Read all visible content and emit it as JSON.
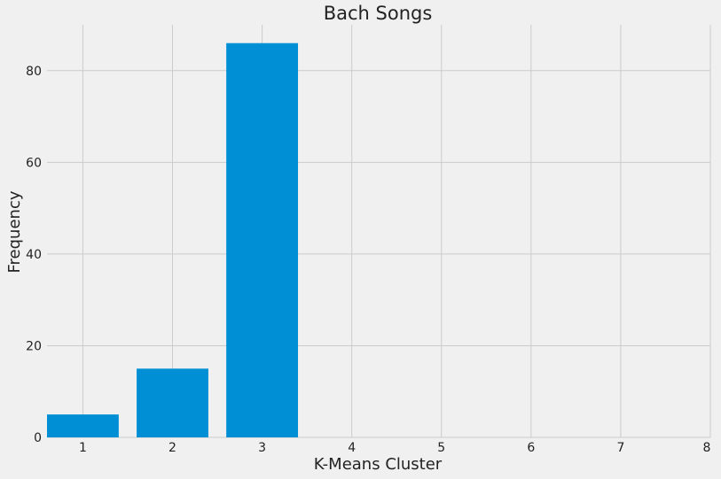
{
  "chart_data": {
    "type": "bar",
    "title": "Bach Songs",
    "xlabel": "K-Means Cluster",
    "ylabel": "Frequency",
    "categories": [
      1,
      2,
      3
    ],
    "values": [
      5,
      15,
      86
    ],
    "xlim": [
      0.6,
      8
    ],
    "ylim": [
      0,
      90
    ],
    "xticks": [
      1,
      2,
      3,
      4,
      5,
      6,
      7,
      8
    ],
    "yticks": [
      0,
      20,
      40,
      60,
      80
    ],
    "bar_width": 0.8,
    "grid": true,
    "bar_color": "#008fd5",
    "background_color": "#f0f0f0",
    "grid_color": "#cbcbcb"
  }
}
